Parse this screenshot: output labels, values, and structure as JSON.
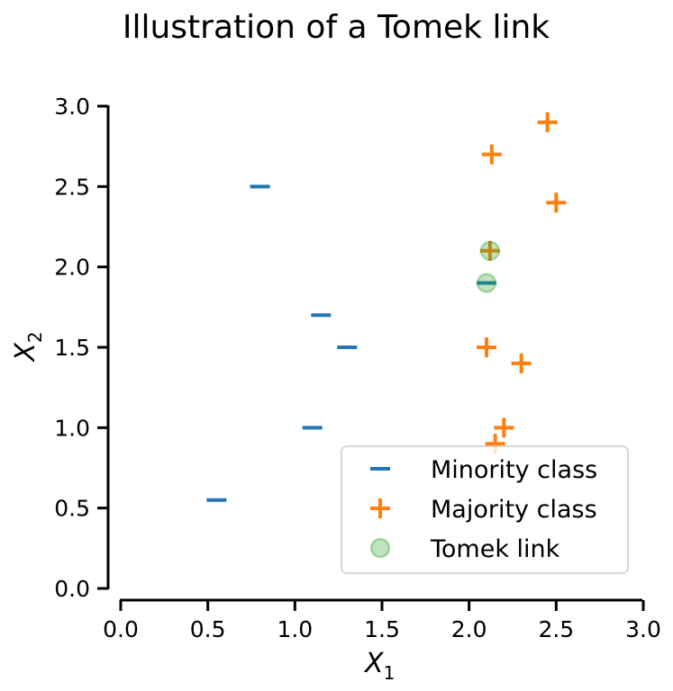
{
  "chart_data": {
    "type": "scatter",
    "title": "Illustration of a Tomek link",
    "xlabel": "X",
    "xlabel_sub": "1",
    "ylabel": "X",
    "ylabel_sub": "2",
    "xlim": [
      0,
      3
    ],
    "ylim": [
      0,
      3
    ],
    "xticks": [
      "0.0",
      "0.5",
      "1.0",
      "1.5",
      "2.0",
      "2.5",
      "3.0"
    ],
    "yticks": [
      "0.0",
      "0.5",
      "1.0",
      "1.5",
      "2.0",
      "2.5",
      "3.0"
    ],
    "grid": false,
    "legend_position": "lower-right",
    "series": [
      {
        "name": "Minority class",
        "marker": "minus",
        "color": "#1f77b4",
        "points": [
          [
            0.8,
            2.5
          ],
          [
            1.15,
            1.7
          ],
          [
            1.3,
            1.5
          ],
          [
            1.1,
            1.0
          ],
          [
            0.55,
            0.55
          ],
          [
            2.1,
            1.9
          ]
        ]
      },
      {
        "name": "Majority class",
        "marker": "plus",
        "color": "#ff7f0e",
        "points": [
          [
            2.45,
            2.9
          ],
          [
            2.13,
            2.7
          ],
          [
            2.5,
            2.4
          ],
          [
            2.12,
            2.1
          ],
          [
            2.1,
            1.5
          ],
          [
            2.3,
            1.4
          ],
          [
            2.2,
            1.0
          ],
          [
            2.15,
            0.9
          ]
        ]
      },
      {
        "name": "Tomek link",
        "marker": "circle",
        "color": "#2ca02c",
        "points": [
          [
            2.12,
            2.1
          ],
          [
            2.1,
            1.9
          ]
        ]
      }
    ]
  }
}
